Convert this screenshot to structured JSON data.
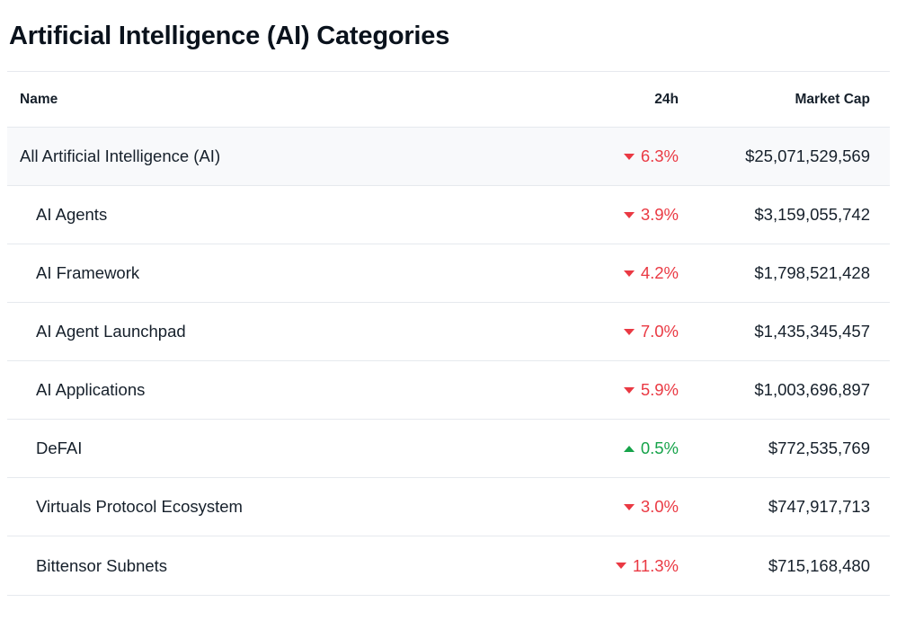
{
  "page": {
    "title": "Artificial Intelligence (AI) Categories"
  },
  "colors": {
    "up": "#16a34a",
    "down": "#ea3943"
  },
  "table": {
    "headers": {
      "name": "Name",
      "change": "24h",
      "market_cap": "Market Cap"
    },
    "rows": [
      {
        "name": "All Artificial Intelligence (AI)",
        "level": 0,
        "direction": "down",
        "change": "6.3%",
        "market_cap": "$25,071,529,569"
      },
      {
        "name": "AI Agents",
        "level": 1,
        "direction": "down",
        "change": "3.9%",
        "market_cap": "$3,159,055,742"
      },
      {
        "name": "AI Framework",
        "level": 1,
        "direction": "down",
        "change": "4.2%",
        "market_cap": "$1,798,521,428"
      },
      {
        "name": "AI Agent Launchpad",
        "level": 1,
        "direction": "down",
        "change": "7.0%",
        "market_cap": "$1,435,345,457"
      },
      {
        "name": "AI Applications",
        "level": 1,
        "direction": "down",
        "change": "5.9%",
        "market_cap": "$1,003,696,897"
      },
      {
        "name": "DeFAI",
        "level": 1,
        "direction": "up",
        "change": "0.5%",
        "market_cap": "$772,535,769"
      },
      {
        "name": "Virtuals Protocol Ecosystem",
        "level": 1,
        "direction": "down",
        "change": "3.0%",
        "market_cap": "$747,917,713"
      },
      {
        "name": "Bittensor Subnets",
        "level": 1,
        "direction": "down",
        "change": "11.3%",
        "market_cap": "$715,168,480"
      }
    ]
  }
}
